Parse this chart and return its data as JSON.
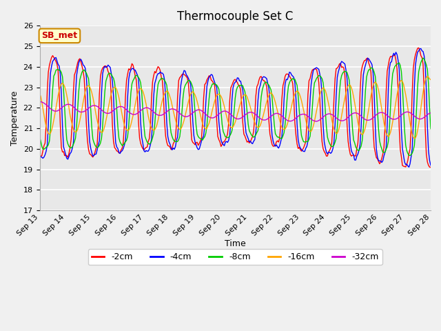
{
  "title": "Thermocouple Set C",
  "xlabel": "Time",
  "ylabel": "Temperature",
  "ylim": [
    17.0,
    26.0
  ],
  "yticks": [
    17.0,
    18.0,
    19.0,
    20.0,
    21.0,
    22.0,
    23.0,
    24.0,
    25.0,
    26.0
  ],
  "x_start_day": 13,
  "x_end_day": 28,
  "xtick_days": [
    13,
    14,
    15,
    16,
    17,
    18,
    19,
    20,
    21,
    22,
    23,
    24,
    25,
    26,
    27,
    28
  ],
  "legend_labels": [
    "-2cm",
    "-4cm",
    "-8cm",
    "-16cm",
    "-32cm"
  ],
  "line_colors": [
    "#ff0000",
    "#0000ff",
    "#00cc00",
    "#ffa500",
    "#cc00cc"
  ],
  "annotation_text": "SB_met",
  "annotation_bg": "#ffffcc",
  "annotation_border": "#cc8800",
  "annotation_text_color": "#cc0000",
  "fig_bg": "#f0f0f0",
  "plot_bg": "#e8e8e8",
  "grid_color": "#ffffff",
  "title_fontsize": 12,
  "axis_fontsize": 9,
  "tick_fontsize": 8,
  "legend_fontsize": 9
}
